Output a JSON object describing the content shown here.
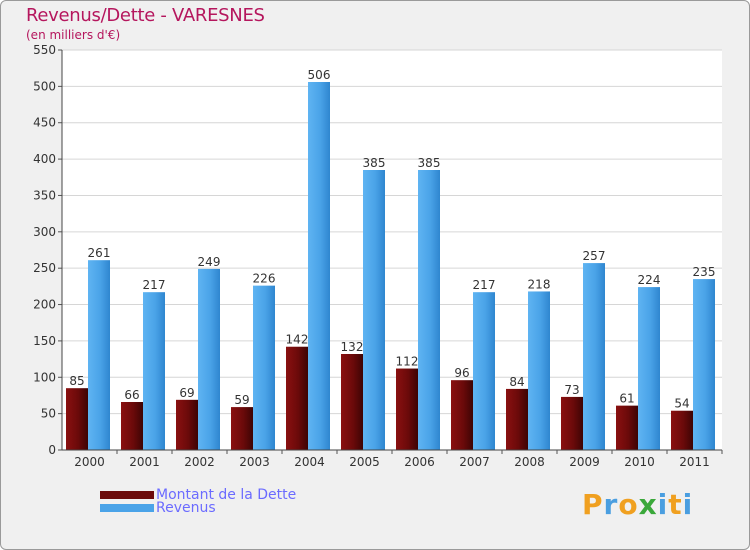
{
  "header": {
    "title": "Revenus/Dette - VARESNES",
    "subtitle": "(en milliers d'€)"
  },
  "chart_data": {
    "type": "bar",
    "title": "Revenus/Dette - VARESNES",
    "ylabel": "(en milliers d'€)",
    "xlabel": "",
    "categories": [
      "2000",
      "2001",
      "2002",
      "2003",
      "2004",
      "2005",
      "2006",
      "2007",
      "2008",
      "2009",
      "2010",
      "2011"
    ],
    "series": [
      {
        "name": "Montant de la Dette",
        "color": "#6b0a0a",
        "values": [
          85,
          66,
          69,
          59,
          142,
          132,
          112,
          96,
          84,
          73,
          61,
          54
        ]
      },
      {
        "name": "Revenus",
        "color": "#4aa3e8",
        "values": [
          261,
          217,
          249,
          226,
          506,
          385,
          385,
          217,
          218,
          257,
          224,
          235
        ]
      }
    ],
    "ylim": [
      0,
      550
    ],
    "yticks": [
      0,
      50,
      100,
      150,
      200,
      250,
      300,
      350,
      400,
      450,
      500,
      550
    ],
    "grid": true,
    "legend": "bottom-left"
  },
  "legend": {
    "items": [
      {
        "label": "Montant de la Dette",
        "color": "#6b0a0a"
      },
      {
        "label": "Revenus",
        "color": "#4aa3e8"
      }
    ]
  },
  "logo": {
    "letters": [
      "P",
      "r",
      "o",
      "x",
      "i",
      "t",
      "i"
    ],
    "colors": [
      "#f0a020",
      "#4a9ee0",
      "#f0a020",
      "#3aa83a",
      "#4a9ee0",
      "#f0a020",
      "#4a9ee0"
    ]
  }
}
